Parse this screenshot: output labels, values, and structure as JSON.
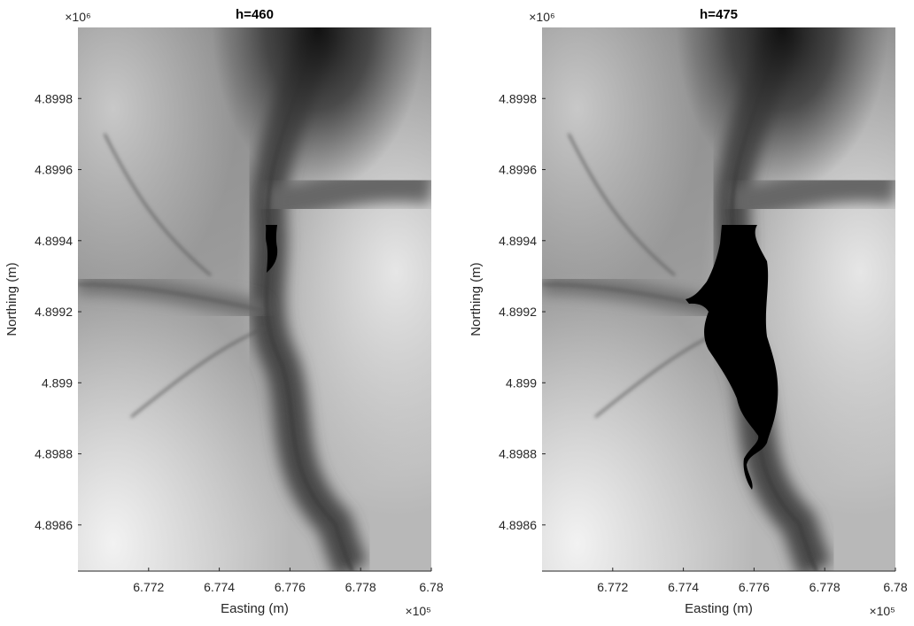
{
  "chart_data": [
    {
      "type": "image",
      "title": "h=460",
      "xlabel": "Easting (m)",
      "ylabel": "Northing (m)",
      "x_exponent": "×10⁵",
      "y_exponent": "×10⁶",
      "xlim": [
        6.77,
        6.78
      ],
      "ylim": [
        4.89847,
        4.9
      ],
      "xticks": [
        6.772,
        6.774,
        6.776,
        6.778,
        6.78
      ],
      "yticks": [
        4.8986,
        4.8988,
        4.899,
        4.8992,
        4.8994,
        4.8996,
        4.8998
      ]
    },
    {
      "type": "image",
      "title": "h=475",
      "xlabel": "Easting (m)",
      "ylabel": "Northing (m)",
      "x_exponent": "×10⁵",
      "y_exponent": "×10⁶",
      "xlim": [
        6.77,
        6.78
      ],
      "ylim": [
        4.89847,
        4.9
      ],
      "xticks": [
        6.772,
        6.774,
        6.776,
        6.778,
        6.78
      ],
      "yticks": [
        4.8986,
        4.8988,
        4.899,
        4.8992,
        4.8994,
        4.8996,
        4.8998
      ]
    }
  ]
}
